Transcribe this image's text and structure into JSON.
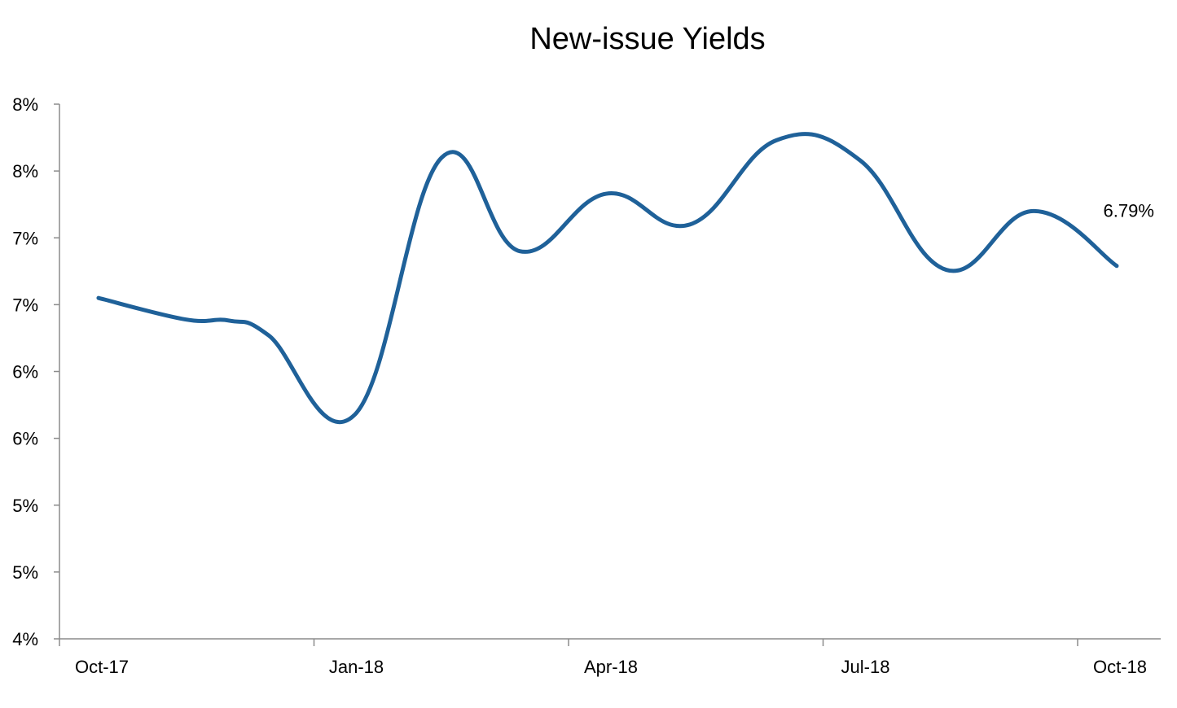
{
  "chart_data": {
    "type": "line",
    "title": "New-issue Yields",
    "xlabel": "",
    "ylabel": "",
    "x_tick_labels": [
      "Oct-17",
      "Jan-18",
      "Apr-18",
      "Jul-18",
      "Oct-18"
    ],
    "y_tick_labels": [
      "4%",
      "5%",
      "5%",
      "6%",
      "6%",
      "7%",
      "7%",
      "8%",
      "8%"
    ],
    "ylim": [
      4.0,
      8.0
    ],
    "y_tick_values": [
      4.0,
      4.5,
      5.0,
      5.5,
      6.0,
      6.5,
      7.0,
      7.5,
      8.0
    ],
    "x_range": [
      "2017-10-01",
      "2018-10-01"
    ],
    "grid": false,
    "legend": "none",
    "series": [
      {
        "color": "#1f6199",
        "x": [
          "2017-10-15",
          "2017-11-15",
          "2017-12-01",
          "2017-12-15",
          "2018-01-15",
          "2018-02-15",
          "2018-03-15",
          "2018-04-15",
          "2018-05-15",
          "2018-06-15",
          "2018-07-15",
          "2018-08-15",
          "2018-09-15",
          "2018-10-15"
        ],
        "values": [
          6.55,
          6.39,
          6.38,
          6.27,
          5.68,
          7.6,
          6.9,
          7.33,
          7.1,
          7.73,
          7.58,
          6.76,
          7.2,
          6.79
        ]
      }
    ],
    "annotations": [
      {
        "text": "6.79%",
        "x": "2018-10-15",
        "y": 6.79
      }
    ]
  }
}
